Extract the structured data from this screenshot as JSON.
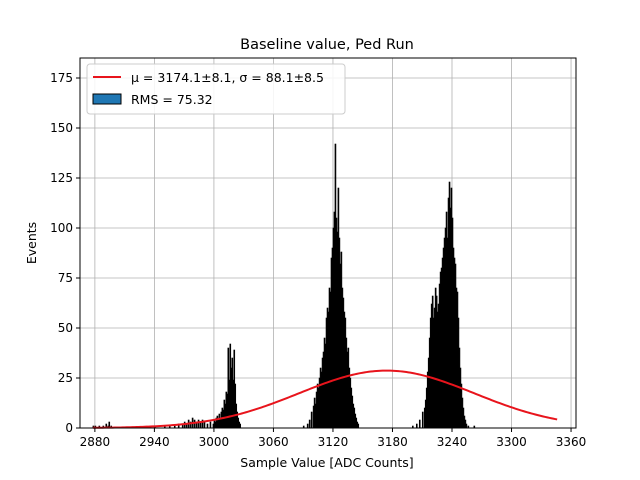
{
  "chart_data": {
    "type": "bar",
    "title": "Baseline value, Ped Run",
    "xlabel": "Sample Value [ADC Counts]",
    "ylabel": "Events",
    "xlim": [
      2865,
      3365
    ],
    "ylim": [
      0,
      185
    ],
    "xticks": [
      2880,
      2940,
      3000,
      3060,
      3120,
      3180,
      3240,
      3300,
      3360
    ],
    "yticks": [
      0,
      25,
      50,
      75,
      100,
      125,
      150,
      175
    ],
    "grid": true,
    "legend_position": "top-left",
    "bar_color": "#000000",
    "fit_color": "#e8141c",
    "legend": [
      {
        "kind": "line",
        "label": "μ = 3174.1±8.1, σ = 88.1±8.5",
        "color": "#e8141c"
      },
      {
        "kind": "patch",
        "label": "RMS = 75.32",
        "color": "#1f77b4"
      }
    ],
    "series": [
      {
        "name": "RMS = 75.32",
        "kind": "histogram",
        "bin_width": 1,
        "bins": [
          [
            2878,
            1
          ],
          [
            2880,
            1
          ],
          [
            2884,
            1
          ],
          [
            2888,
            1
          ],
          [
            2891,
            2
          ],
          [
            2893,
            1
          ],
          [
            2894,
            3
          ],
          [
            2896,
            1
          ],
          [
            2940,
            1
          ],
          [
            2950,
            1
          ],
          [
            2955,
            1
          ],
          [
            2960,
            1
          ],
          [
            2964,
            2
          ],
          [
            2968,
            2
          ],
          [
            2970,
            3
          ],
          [
            2972,
            2
          ],
          [
            2974,
            4
          ],
          [
            2976,
            3
          ],
          [
            2978,
            5
          ],
          [
            2980,
            4
          ],
          [
            2982,
            3
          ],
          [
            2984,
            4
          ],
          [
            2986,
            3
          ],
          [
            2988,
            4
          ],
          [
            2990,
            3
          ],
          [
            2993,
            2
          ],
          [
            2996,
            3
          ],
          [
            2999,
            2
          ],
          [
            3000,
            4
          ],
          [
            3001,
            3
          ],
          [
            3002,
            5
          ],
          [
            3003,
            6
          ],
          [
            3004,
            4
          ],
          [
            3005,
            7
          ],
          [
            3006,
            5
          ],
          [
            3007,
            8
          ],
          [
            3008,
            10
          ],
          [
            3009,
            9
          ],
          [
            3010,
            14
          ],
          [
            3011,
            12
          ],
          [
            3012,
            18
          ],
          [
            3013,
            17
          ],
          [
            3014,
            40
          ],
          [
            3015,
            24
          ],
          [
            3016,
            42
          ],
          [
            3017,
            30
          ],
          [
            3018,
            35
          ],
          [
            3019,
            24
          ],
          [
            3020,
            39
          ],
          [
            3021,
            22
          ],
          [
            3022,
            12
          ],
          [
            3023,
            8
          ],
          [
            3024,
            5
          ],
          [
            3025,
            3
          ],
          [
            3026,
            2
          ],
          [
            3090,
            1
          ],
          [
            3094,
            2
          ],
          [
            3096,
            4
          ],
          [
            3098,
            8
          ],
          [
            3100,
            11
          ],
          [
            3101,
            15
          ],
          [
            3102,
            12
          ],
          [
            3103,
            18
          ],
          [
            3104,
            22
          ],
          [
            3105,
            20
          ],
          [
            3106,
            25
          ],
          [
            3107,
            30
          ],
          [
            3108,
            28
          ],
          [
            3109,
            35
          ],
          [
            3110,
            38
          ],
          [
            3111,
            45
          ],
          [
            3112,
            42
          ],
          [
            3113,
            55
          ],
          [
            3114,
            60
          ],
          [
            3115,
            58
          ],
          [
            3116,
            70
          ],
          [
            3117,
            68
          ],
          [
            3118,
            85
          ],
          [
            3119,
            90
          ],
          [
            3120,
            100
          ],
          [
            3121,
            108
          ],
          [
            3122,
            142
          ],
          [
            3123,
            105
          ],
          [
            3124,
            98
          ],
          [
            3125,
            120
          ],
          [
            3126,
            95
          ],
          [
            3127,
            82
          ],
          [
            3128,
            88
          ],
          [
            3129,
            70
          ],
          [
            3130,
            65
          ],
          [
            3131,
            58
          ],
          [
            3132,
            55
          ],
          [
            3133,
            45
          ],
          [
            3134,
            38
          ],
          [
            3135,
            40
          ],
          [
            3136,
            30
          ],
          [
            3137,
            25
          ],
          [
            3138,
            20
          ],
          [
            3139,
            16
          ],
          [
            3140,
            12
          ],
          [
            3141,
            10
          ],
          [
            3142,
            7
          ],
          [
            3143,
            5
          ],
          [
            3144,
            3
          ],
          [
            3145,
            2
          ],
          [
            3200,
            1
          ],
          [
            3204,
            2
          ],
          [
            3207,
            4
          ],
          [
            3210,
            8
          ],
          [
            3212,
            10
          ],
          [
            3213,
            14
          ],
          [
            3214,
            20
          ],
          [
            3215,
            28
          ],
          [
            3216,
            35
          ],
          [
            3217,
            45
          ],
          [
            3218,
            55
          ],
          [
            3219,
            62
          ],
          [
            3220,
            66
          ],
          [
            3221,
            55
          ],
          [
            3222,
            60
          ],
          [
            3223,
            70
          ],
          [
            3224,
            66
          ],
          [
            3225,
            58
          ],
          [
            3226,
            62
          ],
          [
            3227,
            72
          ],
          [
            3228,
            78
          ],
          [
            3229,
            80
          ],
          [
            3230,
            85
          ],
          [
            3231,
            90
          ],
          [
            3232,
            95
          ],
          [
            3233,
            100
          ],
          [
            3234,
            108
          ],
          [
            3235,
            95
          ],
          [
            3236,
            115
          ],
          [
            3237,
            123
          ],
          [
            3238,
            110
          ],
          [
            3239,
            120
          ],
          [
            3240,
            105
          ],
          [
            3241,
            90
          ],
          [
            3242,
            85
          ],
          [
            3243,
            82
          ],
          [
            3244,
            70
          ],
          [
            3245,
            68
          ],
          [
            3246,
            55
          ],
          [
            3247,
            40
          ],
          [
            3248,
            30
          ],
          [
            3249,
            22
          ],
          [
            3250,
            15
          ],
          [
            3251,
            10
          ],
          [
            3252,
            6
          ],
          [
            3253,
            4
          ],
          [
            3254,
            2
          ],
          [
            3256,
            1
          ],
          [
            3262,
            1
          ]
        ]
      },
      {
        "name": "μ = 3174.1±8.1, σ = 88.1±8.5",
        "kind": "gaussian_fit",
        "mu": 3174.1,
        "sigma": 88.1,
        "amplitude": 28.7,
        "x_range": [
          2878,
          3346
        ]
      }
    ]
  }
}
